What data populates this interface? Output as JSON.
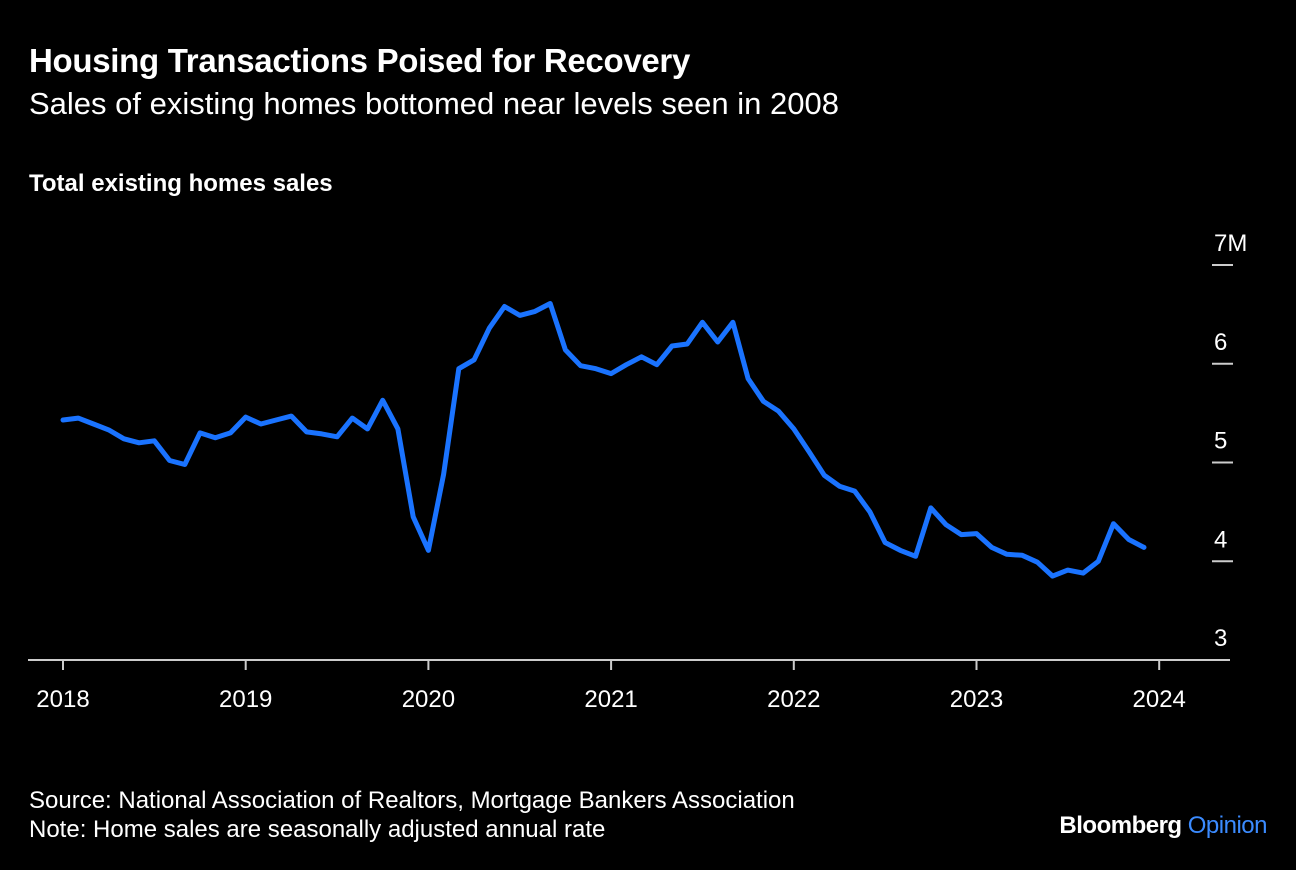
{
  "header": {
    "title": "Housing Transactions Poised for Recovery",
    "subtitle": "Sales of existing homes bottomed near levels seen in 2008",
    "chart_label": "Total existing homes sales"
  },
  "footer": {
    "source": "Source: National Association of Realtors, Mortgage Bankers Association",
    "note": "Note: Home sales are seasonally adjusted annual rate",
    "brand": "Bloomberg",
    "brand_suffix": "Opinion"
  },
  "colors": {
    "background": "#000000",
    "text": "#ffffff",
    "line": "#1a73ff",
    "axis": "#cccccc",
    "brand_accent": "#3b8bff"
  },
  "chart_data": {
    "type": "line",
    "title": "Total existing homes sales",
    "xlabel": "",
    "ylabel": "",
    "ylim": [
      3,
      7
    ],
    "y_ticks": [
      {
        "value": 7,
        "label": "7M"
      },
      {
        "value": 6,
        "label": "6"
      },
      {
        "value": 5,
        "label": "5"
      },
      {
        "value": 4,
        "label": "4"
      },
      {
        "value": 3,
        "label": "3"
      }
    ],
    "x_ticks": [
      "2018",
      "2019",
      "2020",
      "2021",
      "2022",
      "2023",
      "2024"
    ],
    "grid": false,
    "y_axis_side": "right",
    "series": [
      {
        "values": [
          {
            "x": "2018-01",
            "y": 5.43
          },
          {
            "x": "2018-02",
            "y": 5.45
          },
          {
            "x": "2018-03",
            "y": 5.39
          },
          {
            "x": "2018-04",
            "y": 5.33
          },
          {
            "x": "2018-05",
            "y": 5.24
          },
          {
            "x": "2018-06",
            "y": 5.2
          },
          {
            "x": "2018-07",
            "y": 5.22
          },
          {
            "x": "2018-08",
            "y": 5.02
          },
          {
            "x": "2018-09",
            "y": 4.98
          },
          {
            "x": "2018-10",
            "y": 5.3
          },
          {
            "x": "2018-11",
            "y": 5.25
          },
          {
            "x": "2018-12",
            "y": 5.3
          },
          {
            "x": "2019-01",
            "y": 5.46
          },
          {
            "x": "2019-02",
            "y": 5.39
          },
          {
            "x": "2019-03",
            "y": 5.43
          },
          {
            "x": "2019-04",
            "y": 5.47
          },
          {
            "x": "2019-05",
            "y": 5.31
          },
          {
            "x": "2019-06",
            "y": 5.29
          },
          {
            "x": "2019-07",
            "y": 5.26
          },
          {
            "x": "2019-08",
            "y": 5.45
          },
          {
            "x": "2019-09",
            "y": 5.34
          },
          {
            "x": "2019-10",
            "y": 5.63
          },
          {
            "x": "2019-11",
            "y": 5.34
          },
          {
            "x": "2019-12",
            "y": 4.45
          },
          {
            "x": "2020-01",
            "y": 4.11
          },
          {
            "x": "2020-02",
            "y": 4.88
          },
          {
            "x": "2020-03",
            "y": 5.95
          },
          {
            "x": "2020-04",
            "y": 6.04
          },
          {
            "x": "2020-05",
            "y": 6.36
          },
          {
            "x": "2020-06",
            "y": 6.58
          },
          {
            "x": "2020-07",
            "y": 6.49
          },
          {
            "x": "2020-08",
            "y": 6.53
          },
          {
            "x": "2020-09",
            "y": 6.61
          },
          {
            "x": "2020-10",
            "y": 6.14
          },
          {
            "x": "2020-11",
            "y": 5.98
          },
          {
            "x": "2020-12",
            "y": 5.95
          },
          {
            "x": "2021-01",
            "y": 5.9
          },
          {
            "x": "2021-02",
            "y": 5.99
          },
          {
            "x": "2021-03",
            "y": 6.07
          },
          {
            "x": "2021-04",
            "y": 5.99
          },
          {
            "x": "2021-05",
            "y": 6.18
          },
          {
            "x": "2021-06",
            "y": 6.2
          },
          {
            "x": "2021-07",
            "y": 6.42
          },
          {
            "x": "2021-08",
            "y": 6.22
          },
          {
            "x": "2021-09",
            "y": 6.42
          },
          {
            "x": "2021-10",
            "y": 5.85
          },
          {
            "x": "2021-11",
            "y": 5.62
          },
          {
            "x": "2021-12",
            "y": 5.52
          },
          {
            "x": "2022-01",
            "y": 5.34
          },
          {
            "x": "2022-02",
            "y": 5.11
          },
          {
            "x": "2022-03",
            "y": 4.87
          },
          {
            "x": "2022-04",
            "y": 4.76
          },
          {
            "x": "2022-05",
            "y": 4.71
          },
          {
            "x": "2022-06",
            "y": 4.5
          },
          {
            "x": "2022-07",
            "y": 4.19
          },
          {
            "x": "2022-08",
            "y": 4.11
          },
          {
            "x": "2022-09",
            "y": 4.05
          },
          {
            "x": "2022-10",
            "y": 4.54
          },
          {
            "x": "2022-11",
            "y": 4.37
          },
          {
            "x": "2022-12",
            "y": 4.27
          },
          {
            "x": "2023-01",
            "y": 4.28
          },
          {
            "x": "2023-02",
            "y": 4.14
          },
          {
            "x": "2023-03",
            "y": 4.07
          },
          {
            "x": "2023-04",
            "y": 4.06
          },
          {
            "x": "2023-05",
            "y": 3.99
          },
          {
            "x": "2023-06",
            "y": 3.85
          },
          {
            "x": "2023-07",
            "y": 3.91
          },
          {
            "x": "2023-08",
            "y": 3.88
          },
          {
            "x": "2023-09",
            "y": 4.0
          },
          {
            "x": "2023-10",
            "y": 4.38
          },
          {
            "x": "2023-11",
            "y": 4.22
          },
          {
            "x": "2023-12",
            "y": 4.14
          }
        ]
      }
    ]
  }
}
